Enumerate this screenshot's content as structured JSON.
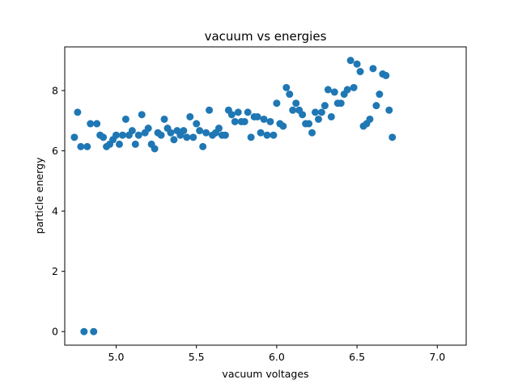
{
  "chart_data": {
    "type": "scatter",
    "title": "vacuum vs energies",
    "xlabel": "vacuum voltages",
    "ylabel": "particle energy",
    "xlim": [
      4.68,
      7.18
    ],
    "ylim": [
      -0.45,
      9.45
    ],
    "xticks": [
      5.0,
      5.5,
      6.0,
      6.5,
      7.0
    ],
    "xtick_labels": [
      "5.0",
      "5.5",
      "6.0",
      "6.5",
      "7.0"
    ],
    "yticks": [
      0,
      2,
      4,
      6,
      8
    ],
    "ytick_labels": [
      "0",
      "2",
      "4",
      "6",
      "8"
    ],
    "grid": false,
    "marker_color": "#1f77b4",
    "points": [
      [
        4.74,
        6.45
      ],
      [
        4.76,
        7.28
      ],
      [
        4.78,
        6.14
      ],
      [
        4.8,
        0.0
      ],
      [
        4.82,
        6.14
      ],
      [
        4.84,
        6.9
      ],
      [
        4.86,
        0.0
      ],
      [
        4.88,
        6.9
      ],
      [
        4.9,
        6.52
      ],
      [
        4.92,
        6.45
      ],
      [
        4.94,
        6.14
      ],
      [
        4.96,
        6.22
      ],
      [
        4.98,
        6.37
      ],
      [
        5.0,
        6.52
      ],
      [
        5.02,
        6.22
      ],
      [
        5.04,
        6.52
      ],
      [
        5.06,
        7.05
      ],
      [
        5.08,
        6.52
      ],
      [
        5.1,
        6.67
      ],
      [
        5.12,
        6.22
      ],
      [
        5.14,
        6.52
      ],
      [
        5.16,
        7.2
      ],
      [
        5.18,
        6.6
      ],
      [
        5.2,
        6.75
      ],
      [
        5.22,
        6.22
      ],
      [
        5.24,
        6.07
      ],
      [
        5.26,
        6.6
      ],
      [
        5.28,
        6.52
      ],
      [
        5.3,
        7.05
      ],
      [
        5.32,
        6.75
      ],
      [
        5.34,
        6.6
      ],
      [
        5.36,
        6.37
      ],
      [
        5.38,
        6.67
      ],
      [
        5.4,
        6.52
      ],
      [
        5.42,
        6.67
      ],
      [
        5.44,
        6.45
      ],
      [
        5.46,
        7.13
      ],
      [
        5.48,
        6.45
      ],
      [
        5.5,
        6.9
      ],
      [
        5.52,
        6.67
      ],
      [
        5.54,
        6.14
      ],
      [
        5.56,
        6.6
      ],
      [
        5.58,
        7.35
      ],
      [
        5.6,
        6.52
      ],
      [
        5.62,
        6.6
      ],
      [
        5.64,
        6.75
      ],
      [
        5.66,
        6.52
      ],
      [
        5.68,
        6.52
      ],
      [
        5.7,
        7.35
      ],
      [
        5.72,
        7.2
      ],
      [
        5.74,
        6.97
      ],
      [
        5.76,
        7.28
      ],
      [
        5.78,
        6.97
      ],
      [
        5.8,
        6.97
      ],
      [
        5.82,
        7.28
      ],
      [
        5.84,
        6.45
      ],
      [
        5.86,
        7.13
      ],
      [
        5.88,
        7.13
      ],
      [
        5.9,
        6.6
      ],
      [
        5.92,
        7.05
      ],
      [
        5.94,
        6.52
      ],
      [
        5.96,
        6.97
      ],
      [
        5.98,
        6.52
      ],
      [
        6.0,
        7.58
      ],
      [
        6.02,
        6.9
      ],
      [
        6.04,
        6.82
      ],
      [
        6.06,
        8.1
      ],
      [
        6.08,
        7.88
      ],
      [
        6.1,
        7.35
      ],
      [
        6.12,
        7.58
      ],
      [
        6.14,
        7.35
      ],
      [
        6.16,
        7.2
      ],
      [
        6.18,
        6.9
      ],
      [
        6.2,
        6.9
      ],
      [
        6.22,
        6.6
      ],
      [
        6.24,
        7.28
      ],
      [
        6.26,
        7.05
      ],
      [
        6.28,
        7.28
      ],
      [
        6.3,
        7.5
      ],
      [
        6.32,
        8.03
      ],
      [
        6.34,
        7.13
      ],
      [
        6.36,
        7.95
      ],
      [
        6.38,
        7.58
      ],
      [
        6.4,
        7.58
      ],
      [
        6.42,
        7.88
      ],
      [
        6.44,
        8.03
      ],
      [
        6.46,
        9.0
      ],
      [
        6.48,
        8.1
      ],
      [
        6.5,
        8.88
      ],
      [
        6.52,
        8.63
      ],
      [
        6.54,
        6.82
      ],
      [
        6.56,
        6.9
      ],
      [
        6.58,
        7.05
      ],
      [
        6.6,
        8.73
      ],
      [
        6.62,
        7.5
      ],
      [
        6.64,
        7.88
      ],
      [
        6.66,
        8.55
      ],
      [
        6.68,
        8.5
      ],
      [
        6.7,
        7.35
      ],
      [
        6.72,
        6.45
      ]
    ]
  }
}
